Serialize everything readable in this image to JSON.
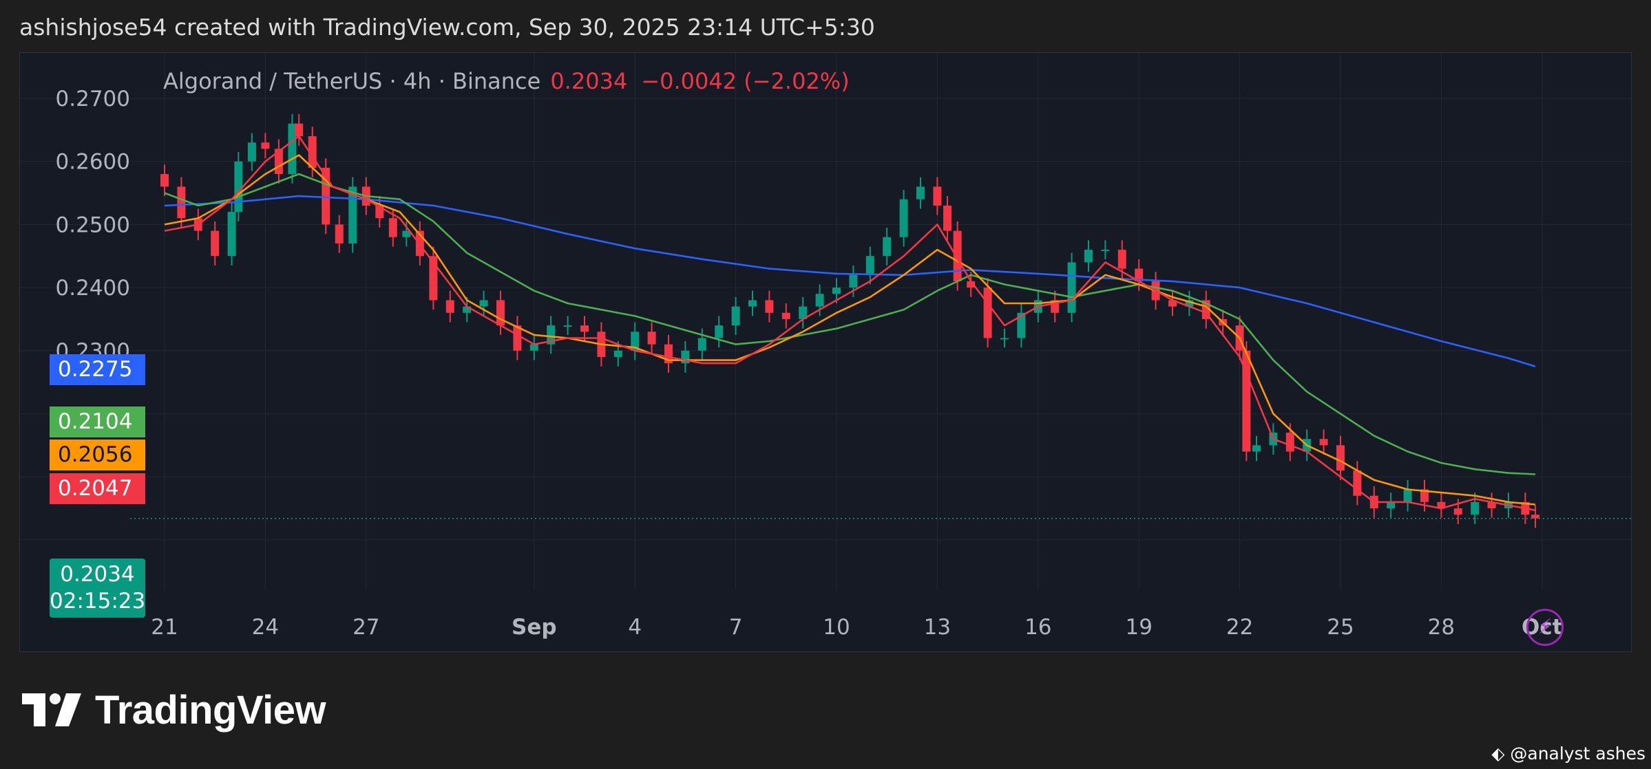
{
  "header": {
    "text": "ashishjose54 created with TradingView.com, Sep 30, 2025 23:14 UTC+5:30"
  },
  "legend": {
    "symbol": "Algorand / TetherUS · 4h · Binance",
    "last": "0.2034",
    "change": "−0.0042 (−2.02%)"
  },
  "price_tags": {
    "ma_blue": "0.2275",
    "ma_green": "0.2104",
    "ma_orange": "0.2056",
    "ma_red": "0.2047",
    "last_price": "0.2034",
    "countdown": "02:15:23"
  },
  "colors": {
    "background": "#161a25",
    "up": "#089981",
    "down": "#f23645",
    "ma_blue": "#2962ff",
    "ma_green": "#4caf50",
    "ma_orange": "#ff9800",
    "ma_red": "#f23645",
    "grid": "#242833",
    "axis_text": "#b2b5be"
  },
  "chart_data": {
    "type": "line",
    "title": "Algorand / TetherUS · 4h · Binance",
    "y_axis": {
      "ylim": [
        0.2,
        0.278
      ],
      "ticks": [
        "0.2700",
        "0.2600",
        "0.2500",
        "0.2400",
        "0.2300"
      ]
    },
    "x_axis": {
      "tick_labels": [
        "21",
        "24",
        "27",
        "Sep",
        "4",
        "7",
        "10",
        "13",
        "16",
        "19",
        "22",
        "25",
        "28",
        "Oct"
      ],
      "tick_positions_day": [
        21,
        24,
        27,
        32,
        35,
        38,
        41,
        44,
        47,
        50,
        53,
        56,
        59,
        62
      ],
      "bold_labels": [
        "Sep",
        "Oct"
      ],
      "day_range": [
        21,
        61.8
      ]
    },
    "price": {
      "x_day": [
        21.0,
        21.5,
        22.0,
        22.5,
        23.0,
        23.2,
        23.6,
        24.0,
        24.4,
        24.8,
        25.0,
        25.4,
        25.8,
        26.2,
        26.6,
        27.0,
        27.4,
        27.8,
        28.2,
        28.6,
        29.0,
        29.5,
        30.0,
        30.5,
        31.0,
        31.5,
        32.0,
        32.5,
        33.0,
        33.5,
        34.0,
        34.5,
        35.0,
        35.5,
        36.0,
        36.5,
        37.0,
        37.5,
        38.0,
        38.5,
        39.0,
        39.5,
        40.0,
        40.5,
        41.0,
        41.5,
        42.0,
        42.5,
        43.0,
        43.5,
        44.0,
        44.3,
        44.6,
        45.0,
        45.5,
        46.0,
        46.5,
        47.0,
        47.5,
        48.0,
        48.5,
        49.0,
        49.5,
        50.0,
        50.5,
        51.0,
        51.5,
        52.0,
        52.5,
        53.0,
        53.2,
        53.5,
        54.0,
        54.5,
        55.0,
        55.5,
        56.0,
        56.5,
        57.0,
        57.5,
        58.0,
        58.5,
        59.0,
        59.5,
        60.0,
        60.5,
        61.0,
        61.5,
        61.8
      ],
      "close": [
        0.256,
        0.251,
        0.249,
        0.245,
        0.252,
        0.26,
        0.263,
        0.262,
        0.258,
        0.266,
        0.264,
        0.259,
        0.25,
        0.247,
        0.256,
        0.253,
        0.251,
        0.248,
        0.249,
        0.245,
        0.238,
        0.236,
        0.237,
        0.238,
        0.234,
        0.23,
        0.231,
        0.234,
        0.234,
        0.233,
        0.229,
        0.23,
        0.233,
        0.231,
        0.228,
        0.23,
        0.232,
        0.234,
        0.237,
        0.238,
        0.236,
        0.235,
        0.237,
        0.239,
        0.24,
        0.242,
        0.245,
        0.248,
        0.254,
        0.256,
        0.253,
        0.249,
        0.241,
        0.24,
        0.232,
        0.232,
        0.236,
        0.238,
        0.236,
        0.244,
        0.246,
        0.246,
        0.243,
        0.241,
        0.238,
        0.237,
        0.238,
        0.235,
        0.234,
        0.23,
        0.214,
        0.215,
        0.217,
        0.214,
        0.216,
        0.215,
        0.211,
        0.207,
        0.205,
        0.206,
        0.208,
        0.206,
        0.205,
        0.204,
        0.206,
        0.205,
        0.206,
        0.204,
        0.2034
      ]
    },
    "series": [
      {
        "color": "#2962ff",
        "x_day": [
          21,
          23,
          25,
          27,
          29,
          31,
          33,
          35,
          37,
          39,
          41,
          43,
          45,
          47,
          49,
          51,
          53,
          55,
          57,
          59,
          61,
          61.8
        ],
        "values": [
          0.253,
          0.2535,
          0.2545,
          0.254,
          0.253,
          0.251,
          0.2485,
          0.2462,
          0.2445,
          0.243,
          0.2422,
          0.242,
          0.2428,
          0.2422,
          0.2415,
          0.241,
          0.24,
          0.2375,
          0.2345,
          0.2315,
          0.2288,
          0.2275
        ]
      },
      {
        "color": "#4caf50",
        "x_day": [
          21,
          22,
          23,
          24,
          25,
          26,
          27,
          28,
          29,
          30,
          31,
          32,
          33,
          34,
          35,
          36,
          37,
          38,
          39,
          40,
          41,
          42,
          43,
          44,
          45,
          46,
          47,
          48,
          49,
          50,
          51,
          52,
          53,
          54,
          55,
          56,
          57,
          58,
          59,
          60,
          61,
          61.8
        ],
        "values": [
          0.255,
          0.253,
          0.254,
          0.256,
          0.258,
          0.256,
          0.2545,
          0.254,
          0.2505,
          0.2455,
          0.2425,
          0.2395,
          0.2375,
          0.2365,
          0.2355,
          0.234,
          0.2325,
          0.231,
          0.2315,
          0.2325,
          0.2335,
          0.235,
          0.2365,
          0.2395,
          0.242,
          0.2405,
          0.2395,
          0.2385,
          0.2395,
          0.2405,
          0.2395,
          0.2375,
          0.235,
          0.2285,
          0.2235,
          0.22,
          0.2165,
          0.214,
          0.2122,
          0.2112,
          0.2106,
          0.2104
        ]
      },
      {
        "color": "#ff9800",
        "x_day": [
          21,
          22,
          23,
          24,
          25,
          26,
          27,
          28,
          29,
          30,
          31,
          32,
          33,
          34,
          35,
          36,
          37,
          38,
          39,
          40,
          41,
          42,
          43,
          44,
          45,
          46,
          47,
          48,
          49,
          50,
          51,
          52,
          53,
          54,
          55,
          56,
          57,
          58,
          59,
          60,
          61,
          61.8
        ],
        "values": [
          0.25,
          0.251,
          0.254,
          0.258,
          0.261,
          0.256,
          0.254,
          0.252,
          0.246,
          0.238,
          0.235,
          0.2325,
          0.232,
          0.231,
          0.2305,
          0.2285,
          0.2285,
          0.2285,
          0.2305,
          0.233,
          0.236,
          0.2385,
          0.242,
          0.246,
          0.243,
          0.2375,
          0.2375,
          0.238,
          0.242,
          0.2405,
          0.2385,
          0.237,
          0.232,
          0.22,
          0.215,
          0.2125,
          0.2095,
          0.208,
          0.2075,
          0.207,
          0.206,
          0.2056
        ]
      },
      {
        "color": "#f23645",
        "x_day": [
          21,
          22,
          23,
          24,
          25,
          26,
          27,
          28,
          29,
          30,
          31,
          32,
          33,
          34,
          35,
          36,
          37,
          38,
          39,
          40,
          41,
          42,
          43,
          44,
          45,
          46,
          47,
          48,
          49,
          50,
          51,
          52,
          53,
          54,
          55,
          56,
          57,
          58,
          59,
          60,
          61,
          61.8
        ],
        "values": [
          0.249,
          0.25,
          0.254,
          0.26,
          0.264,
          0.256,
          0.254,
          0.251,
          0.244,
          0.237,
          0.234,
          0.231,
          0.232,
          0.232,
          0.23,
          0.229,
          0.228,
          0.228,
          0.231,
          0.235,
          0.238,
          0.241,
          0.245,
          0.25,
          0.241,
          0.234,
          0.237,
          0.238,
          0.244,
          0.241,
          0.238,
          0.236,
          0.229,
          0.216,
          0.214,
          0.21,
          0.206,
          0.206,
          0.205,
          0.2065,
          0.2055,
          0.2047
        ]
      }
    ],
    "last_price_line": 0.2034
  },
  "brand": {
    "name": "TradingView"
  },
  "watermark": {
    "text": "@analyst ashes"
  }
}
